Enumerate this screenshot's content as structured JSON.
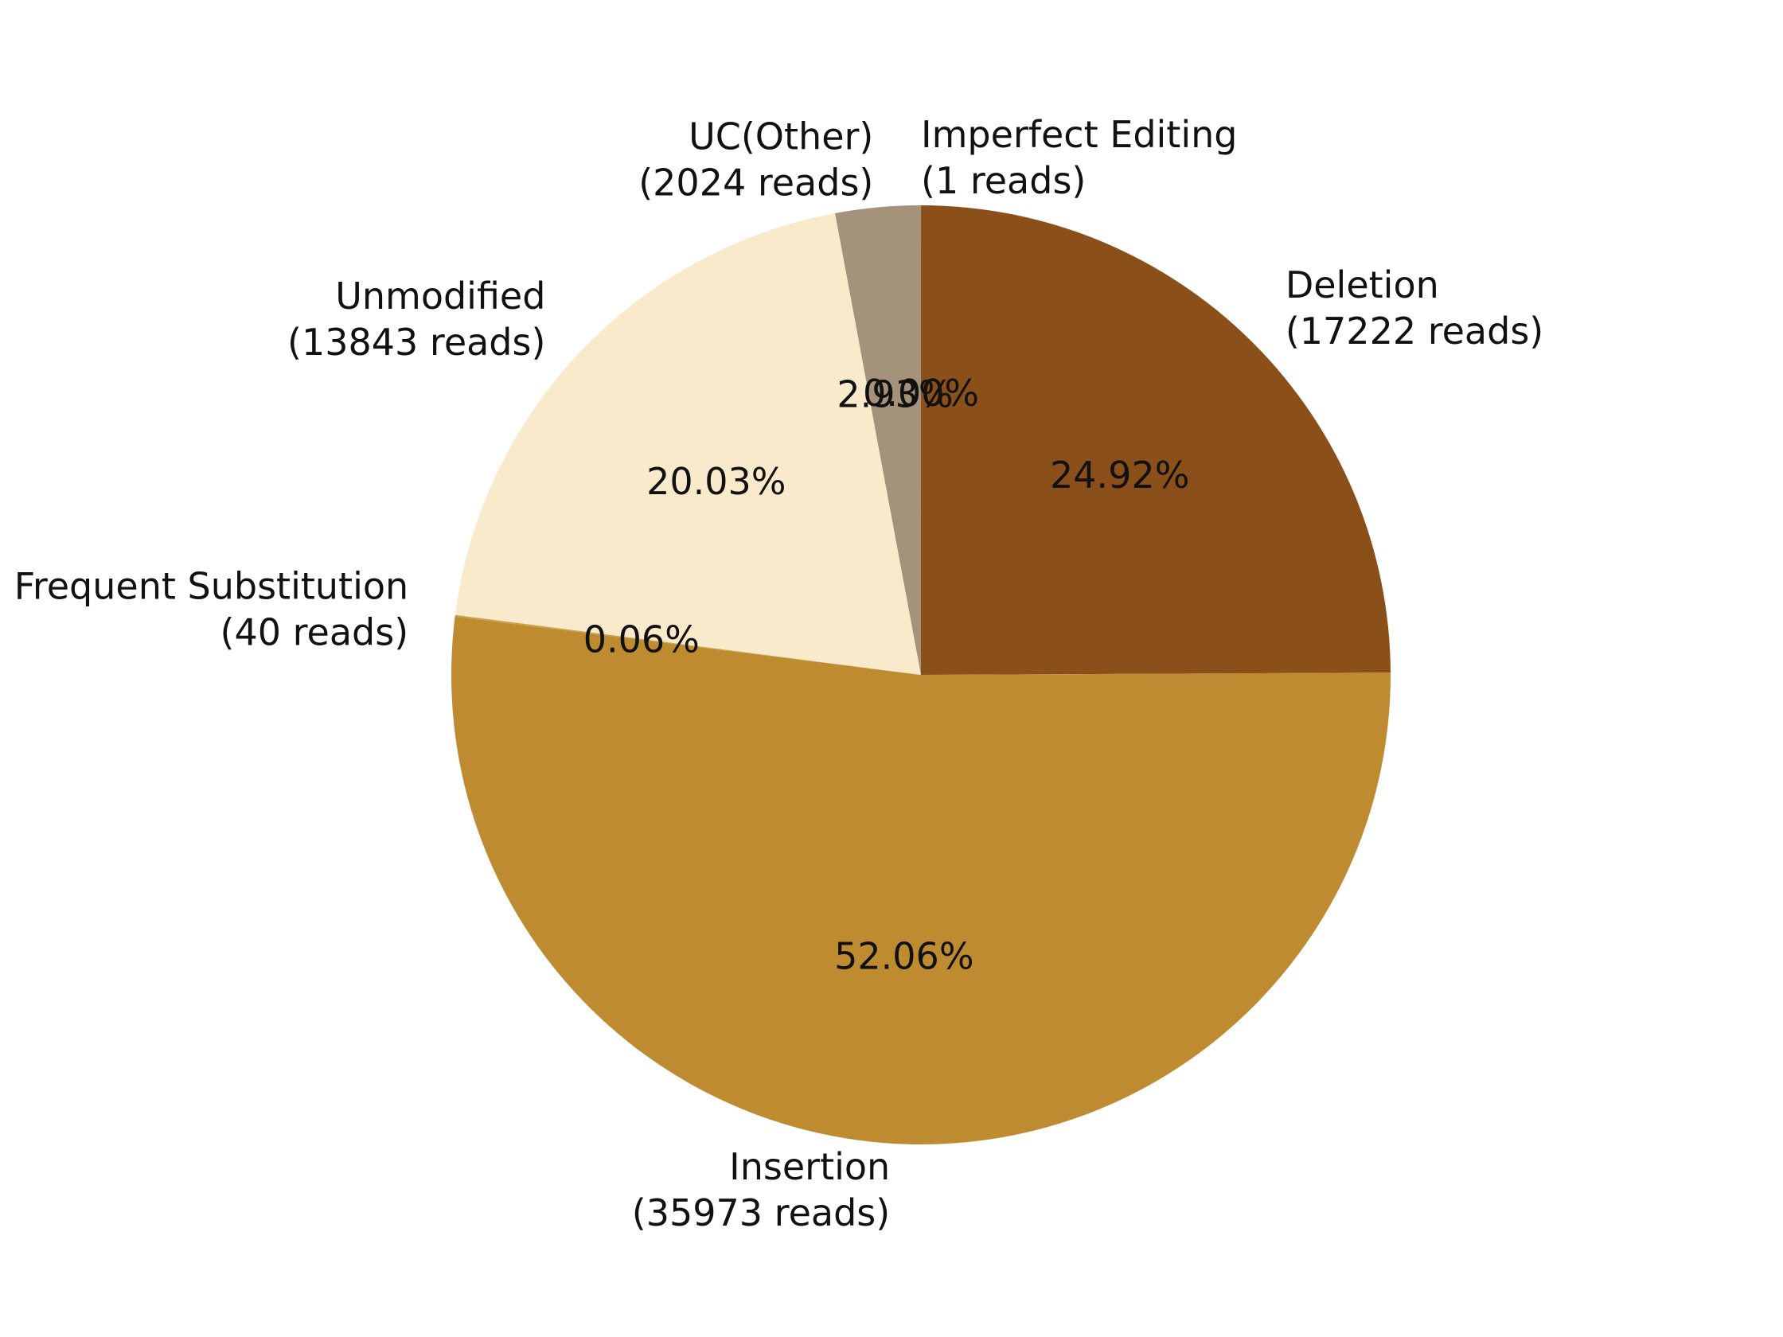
{
  "chart_data": {
    "type": "pie",
    "title": "",
    "start_angle_deg": 90,
    "direction": "clockwise",
    "slices": [
      {
        "name": "Imperfect Editing",
        "reads_label": "(1 reads)",
        "value": 1,
        "percent_label": "0.00%",
        "color": "#8B4513"
      },
      {
        "name": "Deletion",
        "reads_label": "(17222 reads)",
        "value": 17222,
        "percent_label": "24.92%",
        "color": "#8B4F1A"
      },
      {
        "name": "Insertion",
        "reads_label": "(35973 reads)",
        "value": 35973,
        "percent_label": "52.06%",
        "color": "#BF8B30"
      },
      {
        "name": "Frequent Substitution",
        "reads_label": "(40 reads)",
        "value": 40,
        "percent_label": "0.06%",
        "color": "#C8A04A"
      },
      {
        "name": "Unmodified",
        "reads_label": "(13843 reads)",
        "value": 13843,
        "percent_label": "20.03%",
        "color": "#F9EACB"
      },
      {
        "name": "UC(Other)",
        "reads_label": "(2024 reads)",
        "value": 2024,
        "percent_label": "2.93%",
        "color": "#A4937A"
      }
    ]
  }
}
